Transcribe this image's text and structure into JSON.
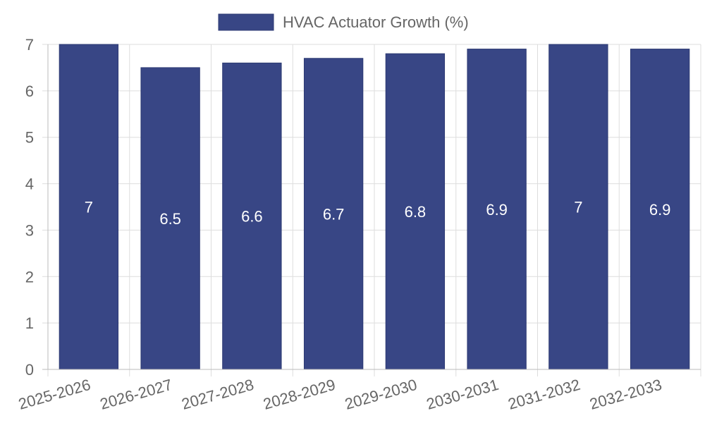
{
  "chart_data": {
    "type": "bar",
    "categories": [
      "2025-2026",
      "2026-2027",
      "2027-2028",
      "2028-2029",
      "2029-2030",
      "2030-2031",
      "2031-2032",
      "2032-2033"
    ],
    "series": [
      {
        "name": "HVAC Actuator Growth (%)",
        "values": [
          7,
          6.5,
          6.6,
          6.7,
          6.8,
          6.9,
          7,
          6.9
        ]
      }
    ],
    "data_labels": [
      "7",
      "6.5",
      "6.6",
      "6.7",
      "6.8",
      "6.9",
      "7",
      "6.9"
    ],
    "title": "",
    "xlabel": "",
    "ylabel": "",
    "ylim": [
      0,
      7
    ],
    "yticks": [
      0,
      1,
      2,
      3,
      4,
      5,
      6,
      7
    ],
    "legend_position": "top-center",
    "grid": true
  },
  "colors": {
    "bar_fill": "#384685",
    "bar_stroke": "#2d3a73",
    "grid": "#dddddd",
    "axis": "#bbbbbb",
    "text": "#666666",
    "label": "#ffffff"
  }
}
